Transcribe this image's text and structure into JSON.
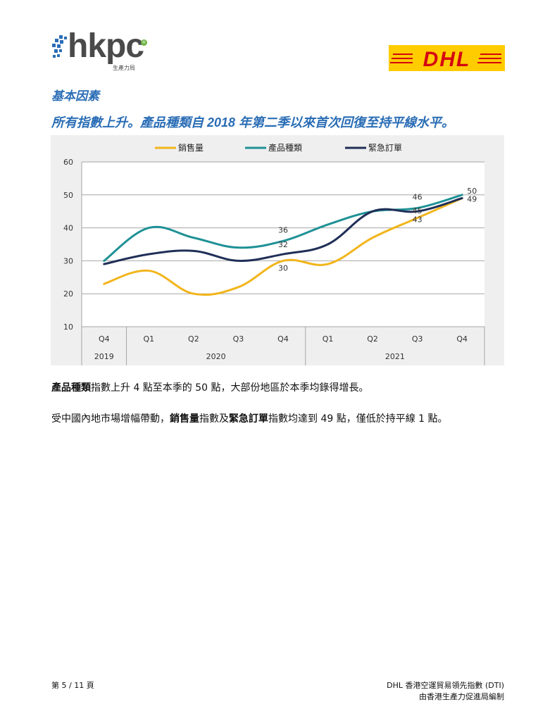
{
  "header": {
    "hkpc_logo": {
      "wordmark": "hkpc",
      "subtitle": "生產力局"
    },
    "dhl_logo": {
      "wordmark": "DHL",
      "bg_color": "#ffcc00",
      "text_color": "#d40511"
    }
  },
  "section_title": "基本因素",
  "headline": "所有指數上升。產品種類自 2018 年第二季以來首次回復至持平線水平。",
  "chart_data": {
    "type": "line",
    "categories": [
      "Q4",
      "Q1",
      "Q2",
      "Q3",
      "Q4",
      "Q1",
      "Q2",
      "Q3",
      "Q4"
    ],
    "year_groups": [
      {
        "label": "2019",
        "span": 1
      },
      {
        "label": "2020",
        "span": 4
      },
      {
        "label": "2021",
        "span": 4
      }
    ],
    "yticks": [
      10,
      20,
      30,
      40,
      50,
      60
    ],
    "ylim": [
      10,
      60
    ],
    "grid": true,
    "legend_position": "top",
    "series": [
      {
        "name": "銷售量",
        "color": "#f2b51c",
        "values": [
          23,
          27,
          20,
          22,
          30,
          29,
          37,
          43,
          49
        ]
      },
      {
        "name": "產品種類",
        "color": "#1f9196",
        "values": [
          30,
          40,
          37,
          34,
          36,
          41,
          45,
          46,
          50
        ]
      },
      {
        "name": "緊急訂單",
        "color": "#1f2f57",
        "values": [
          29,
          32,
          33,
          30,
          32,
          35,
          45,
          45,
          49
        ]
      }
    ],
    "data_labels": [
      {
        "series": 1,
        "index": 4,
        "text": "36"
      },
      {
        "series": 2,
        "index": 4,
        "text": "32"
      },
      {
        "series": 0,
        "index": 4,
        "text": "30"
      },
      {
        "series": 1,
        "index": 7,
        "text": "46"
      },
      {
        "series": 2,
        "index": 7,
        "text": "45"
      },
      {
        "series": 0,
        "index": 7,
        "text": "43"
      },
      {
        "series": 1,
        "index": 8,
        "text": "50"
      },
      {
        "series": 0,
        "index": 8,
        "text": "49"
      }
    ]
  },
  "paragraphs": [
    {
      "segments": [
        {
          "text": "產品種類",
          "bold": true
        },
        {
          "text": "指數上升 4 點至本季的 50 點，大部份地區於本季均錄得增長。",
          "bold": false
        }
      ]
    },
    {
      "segments": [
        {
          "text": "受中國內地市場增幅帶動，",
          "bold": false
        },
        {
          "text": "銷售量",
          "bold": true
        },
        {
          "text": "指數及",
          "bold": false
        },
        {
          "text": "緊急訂單",
          "bold": true
        },
        {
          "text": "指數均達到 49 點，僅低於持平線 1 點。",
          "bold": false
        }
      ]
    }
  ],
  "footer": {
    "page": "第 5 / 11 頁",
    "title": "DHL 香港空運貿易領先指數 (DTI)",
    "publisher": "由香港生產力促進局編制"
  }
}
